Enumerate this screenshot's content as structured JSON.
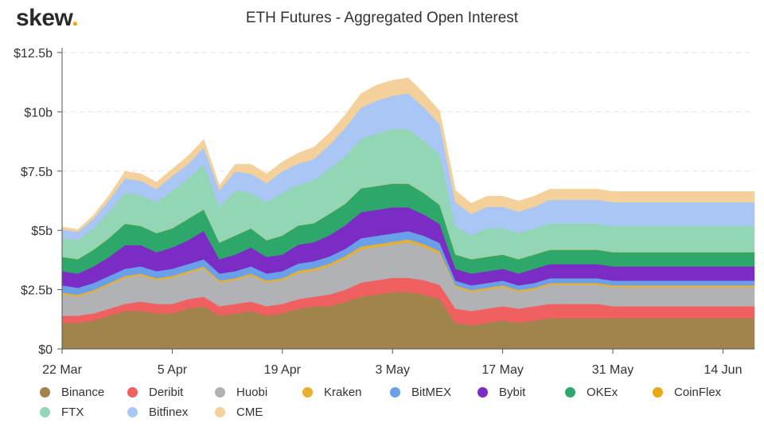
{
  "brand": {
    "name": "skew",
    "dot": "."
  },
  "chart_data": {
    "type": "area",
    "stacked": true,
    "title": "ETH Futures - Aggregated Open Interest",
    "xlabel": "",
    "ylabel": "",
    "ylim": [
      0,
      12.5
    ],
    "yticks": [
      0,
      2.5,
      5,
      7.5,
      10,
      12.5
    ],
    "ytick_labels": [
      "$0",
      "$2.5b",
      "$5b",
      "$7.5b",
      "$10b",
      "$12.5b"
    ],
    "xtick_days": [
      0,
      14,
      28,
      42,
      56,
      70,
      84
    ],
    "xtick_labels": [
      "22 Mar",
      "5 Apr",
      "19 Apr",
      "3 May",
      "17 May",
      "31 May",
      "14 Jun"
    ],
    "x_days": [
      0,
      2,
      4,
      6,
      8,
      10,
      12,
      14,
      16,
      18,
      20,
      22,
      24,
      26,
      28,
      30,
      32,
      34,
      36,
      38,
      40,
      42,
      44,
      46,
      48,
      50,
      52,
      54,
      56,
      58,
      60,
      62,
      64,
      66,
      68,
      70,
      72,
      74,
      76,
      78,
      80,
      82,
      84,
      86,
      88
    ],
    "legend_position": "bottom",
    "series": [
      {
        "name": "Binance",
        "color": "#a0844c",
        "values": [
          1.1,
          1.1,
          1.2,
          1.4,
          1.6,
          1.6,
          1.5,
          1.5,
          1.7,
          1.8,
          1.4,
          1.5,
          1.6,
          1.4,
          1.5,
          1.7,
          1.8,
          1.8,
          2.0,
          2.2,
          2.3,
          2.4,
          2.4,
          2.3,
          2.1,
          1.1,
          1.0,
          1.1,
          1.2,
          1.1,
          1.2,
          1.3,
          1.3,
          1.3,
          1.3,
          1.3,
          1.3,
          1.3,
          1.3,
          1.3,
          1.3,
          1.3,
          1.3,
          1.3,
          1.3
        ]
      },
      {
        "name": "Deribit",
        "color": "#f06060",
        "values": [
          0.3,
          0.3,
          0.3,
          0.3,
          0.3,
          0.4,
          0.4,
          0.4,
          0.4,
          0.4,
          0.4,
          0.4,
          0.4,
          0.4,
          0.4,
          0.4,
          0.4,
          0.5,
          0.5,
          0.6,
          0.6,
          0.6,
          0.6,
          0.6,
          0.6,
          0.6,
          0.6,
          0.6,
          0.6,
          0.6,
          0.6,
          0.6,
          0.6,
          0.6,
          0.6,
          0.5,
          0.5,
          0.5,
          0.5,
          0.5,
          0.5,
          0.5,
          0.5,
          0.5,
          0.5
        ]
      },
      {
        "name": "Huobi",
        "color": "#b0b2b5",
        "values": [
          0.9,
          0.8,
          0.9,
          1.0,
          1.1,
          1.1,
          1.0,
          1.1,
          1.1,
          1.2,
          1.0,
          1.0,
          1.1,
          1.0,
          1.0,
          1.1,
          1.1,
          1.2,
          1.3,
          1.4,
          1.4,
          1.4,
          1.5,
          1.4,
          1.3,
          0.9,
          0.8,
          0.8,
          0.8,
          0.7,
          0.7,
          0.8,
          0.8,
          0.8,
          0.8,
          0.8,
          0.8,
          0.8,
          0.8,
          0.8,
          0.8,
          0.8,
          0.8,
          0.8,
          0.8
        ]
      },
      {
        "name": "Kraken",
        "color": "#e8b030",
        "values": [
          0.08,
          0.08,
          0.08,
          0.08,
          0.08,
          0.08,
          0.08,
          0.08,
          0.08,
          0.08,
          0.08,
          0.08,
          0.08,
          0.08,
          0.08,
          0.1,
          0.1,
          0.1,
          0.12,
          0.12,
          0.12,
          0.12,
          0.12,
          0.12,
          0.12,
          0.08,
          0.08,
          0.08,
          0.08,
          0.08,
          0.08,
          0.08,
          0.08,
          0.08,
          0.08,
          0.08,
          0.08,
          0.08,
          0.08,
          0.08,
          0.08,
          0.08,
          0.08,
          0.08,
          0.08
        ]
      },
      {
        "name": "BitMEX",
        "color": "#6aa0ea",
        "values": [
          0.3,
          0.3,
          0.3,
          0.3,
          0.3,
          0.3,
          0.3,
          0.3,
          0.3,
          0.3,
          0.3,
          0.3,
          0.3,
          0.3,
          0.3,
          0.3,
          0.3,
          0.3,
          0.3,
          0.35,
          0.35,
          0.35,
          0.35,
          0.35,
          0.35,
          0.2,
          0.2,
          0.2,
          0.2,
          0.2,
          0.2,
          0.2,
          0.2,
          0.2,
          0.2,
          0.2,
          0.2,
          0.2,
          0.2,
          0.2,
          0.2,
          0.2,
          0.2,
          0.2,
          0.2
        ]
      },
      {
        "name": "Bybit",
        "color": "#7a2cc4",
        "values": [
          0.6,
          0.6,
          0.7,
          0.8,
          1.0,
          0.9,
          0.8,
          0.9,
          1.0,
          1.2,
          0.6,
          0.7,
          0.8,
          0.7,
          0.7,
          0.8,
          0.8,
          0.9,
          1.0,
          1.1,
          1.1,
          1.1,
          1.0,
          0.9,
          0.8,
          0.5,
          0.5,
          0.5,
          0.5,
          0.5,
          0.6,
          0.6,
          0.6,
          0.6,
          0.6,
          0.6,
          0.6,
          0.6,
          0.6,
          0.6,
          0.6,
          0.6,
          0.6,
          0.6,
          0.6
        ]
      },
      {
        "name": "OKEx",
        "color": "#2ea86a",
        "values": [
          0.6,
          0.6,
          0.7,
          0.8,
          0.9,
          0.8,
          0.8,
          0.8,
          0.9,
          0.9,
          0.7,
          0.8,
          0.8,
          0.7,
          0.8,
          0.8,
          0.8,
          0.9,
          0.9,
          1.0,
          1.0,
          1.0,
          1.0,
          0.9,
          0.8,
          0.6,
          0.6,
          0.6,
          0.6,
          0.6,
          0.6,
          0.6,
          0.6,
          0.6,
          0.6,
          0.6,
          0.6,
          0.6,
          0.6,
          0.6,
          0.6,
          0.6,
          0.6,
          0.6,
          0.6
        ]
      },
      {
        "name": "CoinFlex",
        "color": "#e8a818",
        "values": [
          0.01,
          0.01,
          0.01,
          0.01,
          0.01,
          0.01,
          0.01,
          0.01,
          0.01,
          0.01,
          0.01,
          0.01,
          0.01,
          0.01,
          0.01,
          0.01,
          0.01,
          0.01,
          0.01,
          0.01,
          0.01,
          0.01,
          0.01,
          0.01,
          0.01,
          0.01,
          0.01,
          0.01,
          0.01,
          0.01,
          0.01,
          0.01,
          0.01,
          0.01,
          0.01,
          0.01,
          0.01,
          0.01,
          0.01,
          0.01,
          0.01,
          0.01,
          0.01,
          0.01,
          0.01
        ]
      },
      {
        "name": "FTX",
        "color": "#92d6b6",
        "values": [
          0.8,
          0.8,
          0.9,
          1.1,
          1.3,
          1.3,
          1.3,
          1.6,
          1.7,
          1.9,
          1.5,
          1.9,
          1.5,
          1.6,
          1.8,
          1.7,
          1.8,
          1.9,
          2.0,
          2.1,
          2.2,
          2.3,
          2.3,
          2.2,
          2.1,
          1.2,
          1.0,
          1.2,
          1.1,
          1.1,
          1.1,
          1.1,
          1.1,
          1.1,
          1.1,
          1.1,
          1.1,
          1.1,
          1.1,
          1.1,
          1.1,
          1.1,
          1.1,
          1.1,
          1.1
        ]
      },
      {
        "name": "Bitfinex",
        "color": "#a9c6f4",
        "values": [
          0.35,
          0.35,
          0.4,
          0.5,
          0.6,
          0.6,
          0.55,
          0.6,
          0.6,
          0.7,
          0.7,
          0.8,
          0.8,
          0.8,
          0.9,
          0.9,
          0.9,
          1.0,
          1.2,
          1.3,
          1.4,
          1.4,
          1.5,
          1.4,
          1.3,
          1.0,
          0.9,
          0.9,
          0.9,
          0.9,
          0.9,
          1.0,
          1.0,
          1.0,
          1.0,
          1.0,
          1.0,
          1.0,
          1.0,
          1.0,
          1.0,
          1.0,
          1.0,
          1.0,
          1.0
        ]
      },
      {
        "name": "CME",
        "color": "#f4d09a",
        "values": [
          0.1,
          0.1,
          0.15,
          0.2,
          0.3,
          0.3,
          0.3,
          0.3,
          0.35,
          0.35,
          0.2,
          0.3,
          0.4,
          0.4,
          0.4,
          0.45,
          0.5,
          0.5,
          0.55,
          0.6,
          0.65,
          0.65,
          0.65,
          0.6,
          0.55,
          0.5,
          0.45,
          0.45,
          0.45,
          0.45,
          0.45,
          0.45,
          0.45,
          0.45,
          0.45,
          0.45,
          0.45,
          0.45,
          0.45,
          0.45,
          0.45,
          0.45,
          0.45,
          0.45,
          0.45
        ]
      }
    ]
  }
}
